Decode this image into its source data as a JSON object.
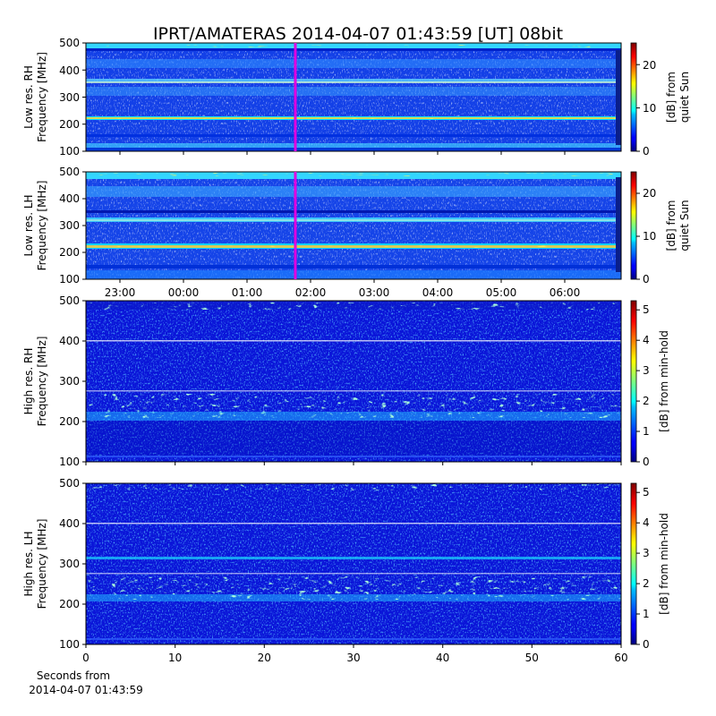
{
  "figure": {
    "title": "IPRT/AMATERAS 2014-04-07 01:43:59 [UT]   08bit"
  },
  "chart_data": [
    {
      "type": "heatmap",
      "id": "low-res-rh",
      "ylabel_line1": "Low res. RH",
      "ylabel_line2": "Frequency [MHz]",
      "yticks": [
        "100",
        "200",
        "300",
        "400",
        "500"
      ],
      "ylim": [
        100,
        500
      ],
      "xaxis": "time",
      "xlim_hours_label": [
        "23:00",
        "06:00"
      ],
      "colorbar": {
        "label_line1": "[dB] from",
        "label_line2": "quiet Sun",
        "ticks": [
          "0",
          "10",
          "20"
        ],
        "range": [
          0,
          25
        ]
      },
      "marker_time": "01:43:59",
      "marker_color": "#e000e0",
      "colormap": "jet"
    },
    {
      "type": "heatmap",
      "id": "low-res-lh",
      "ylabel_line1": "Low res. LH",
      "ylabel_line2": "Frequency [MHz]",
      "yticks": [
        "100",
        "200",
        "300",
        "400",
        "500"
      ],
      "ylim": [
        100,
        500
      ],
      "xaxis": "time",
      "xticks": [
        "23:00",
        "00:00",
        "01:00",
        "02:00",
        "03:00",
        "04:00",
        "05:00",
        "06:00"
      ],
      "colorbar": {
        "label_line1": "[dB] from",
        "label_line2": "quiet Sun",
        "ticks": [
          "0",
          "10",
          "20"
        ],
        "range": [
          0,
          25
        ]
      },
      "marker_time": "01:43:59",
      "marker_color": "#e000e0",
      "colormap": "jet"
    },
    {
      "type": "heatmap",
      "id": "high-res-rh",
      "ylabel_line1": "High res. RH",
      "ylabel_line2": "Frequency [MHz]",
      "yticks": [
        "100",
        "200",
        "300",
        "400",
        "500"
      ],
      "ylim": [
        100,
        500
      ],
      "xlim": [
        0,
        60
      ],
      "colorbar": {
        "label": "[dB] from min-hold",
        "ticks": [
          "0",
          "1",
          "2",
          "3",
          "4",
          "5"
        ],
        "range": [
          0,
          5.3
        ]
      },
      "colormap": "jet"
    },
    {
      "type": "heatmap",
      "id": "high-res-lh",
      "ylabel_line1": "High res. LH",
      "ylabel_line2": "Frequency [MHz]",
      "yticks": [
        "100",
        "200",
        "300",
        "400",
        "500"
      ],
      "ylim": [
        100,
        500
      ],
      "xticks": [
        "0",
        "10",
        "20",
        "30",
        "40",
        "50",
        "60"
      ],
      "xlim": [
        0,
        60
      ],
      "xlabel_line1": "Seconds from",
      "xlabel_line2": "2014-04-07 01:43:59",
      "colorbar": {
        "label": "[dB] from min-hold",
        "ticks": [
          "0",
          "1",
          "2",
          "3",
          "4",
          "5"
        ],
        "range": [
          0,
          5.3
        ]
      },
      "colormap": "jet"
    }
  ]
}
